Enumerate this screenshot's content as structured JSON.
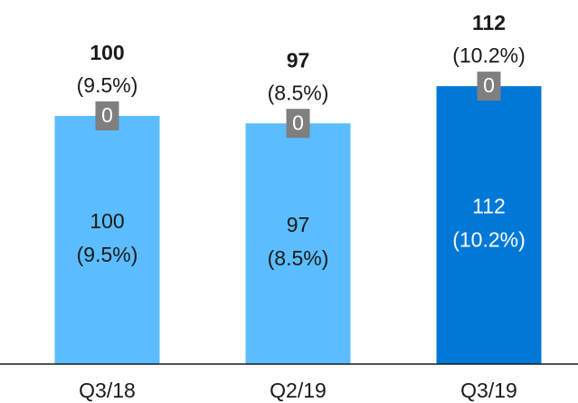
{
  "chart_data": {
    "type": "bar",
    "categories": [
      "Q3/18",
      "Q2/19",
      "Q3/19"
    ],
    "series": [
      {
        "values": [
          100,
          97,
          112
        ],
        "colors": [
          "#5bbcff",
          "#5bbcff",
          "#0078d7"
        ]
      },
      {
        "values": [
          0,
          0,
          0
        ],
        "color": "#7f7f7f"
      }
    ],
    "totals": [
      100,
      97,
      112
    ],
    "shares": [
      9.5,
      8.5,
      10.2
    ],
    "share_labels": [
      "(9.5%)",
      "(8.5%)",
      "(10.2%)"
    ],
    "ylim": [
      0,
      140
    ]
  }
}
